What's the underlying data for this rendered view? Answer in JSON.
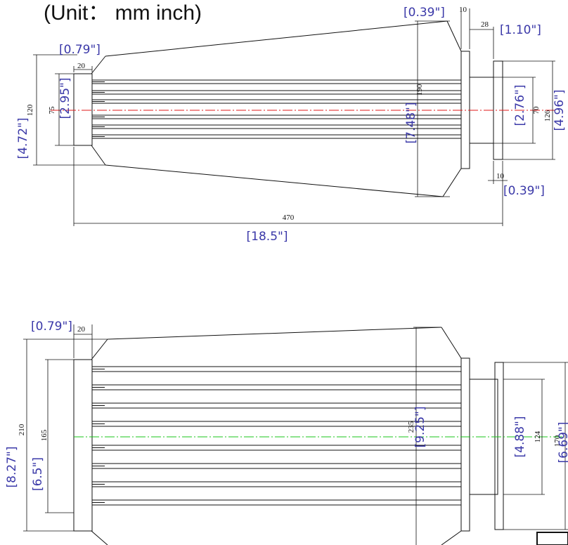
{
  "title": "(Unit： mm inch)",
  "colors": {
    "ink": "#111111",
    "inch_labels": "#3a38a8",
    "axis_top": "#e01818",
    "axis_bottom": "#18c418"
  },
  "top_view": {
    "dims_mm": {
      "flange_width": "20",
      "outer_height": "120",
      "flange_inner": "75",
      "body_height": "190",
      "collar_width": "10",
      "ring_width": "28",
      "inner_bore": "70",
      "end_outer": "126",
      "end_width": "10",
      "total_length": "470"
    },
    "dims_inch": {
      "flange_width": "[0.79\"]",
      "outer_height": "[4.72\"]",
      "flange_inner": "[2.95\"]",
      "body_height": "[7.48\"]",
      "collar_width": "[0.39\"]",
      "ring_width": "[1.10\"]",
      "inner_bore": "[2.76\"]",
      "end_outer": "[4.96\"]",
      "end_width": "[0.39\"]",
      "total_length": "[18.5\"]"
    }
  },
  "bottom_view": {
    "dims_mm": {
      "flange_width": "20",
      "outer_height": "210",
      "flange_inner": "165",
      "body_height": "235",
      "inner_bore": "124",
      "end_outer": "170"
    },
    "dims_inch": {
      "flange_width": "[0.79\"]",
      "outer_height": "[8.27\"]",
      "flange_inner": "[6.5\"]",
      "body_height": "[9.25\"]",
      "inner_bore": "[4.88\"]",
      "end_outer": "[6.69\"]"
    }
  }
}
